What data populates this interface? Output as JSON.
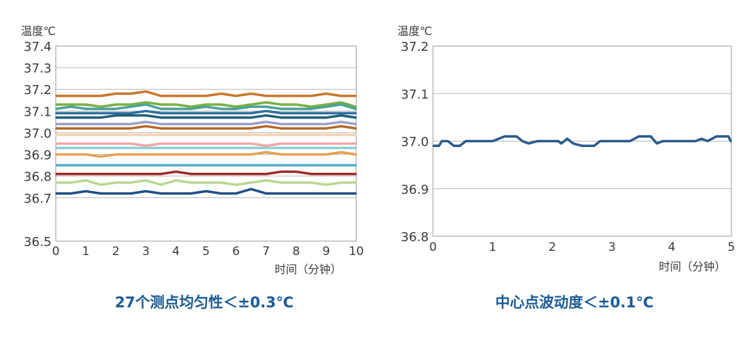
{
  "chart_data": [
    {
      "type": "line",
      "ylabel": "温度℃",
      "xlabel": "时间（分钟）",
      "caption": "27个测点均匀性＜±0.3℃",
      "xlim": [
        0,
        10
      ],
      "ylim": [
        36.5,
        37.4
      ],
      "x_ticks": [
        "0",
        "1",
        "2",
        "3",
        "4",
        "5",
        "6",
        "7",
        "8",
        "9",
        "10"
      ],
      "y_ticks": [
        "37.4",
        "37.3",
        "37.2",
        "37.1",
        "37.0",
        "36.9",
        "36.8",
        "36.7",
        "36.5"
      ],
      "grid": true,
      "series": [
        {
          "color": "#c8782a",
          "values": [
            37.17,
            37.17,
            37.17,
            37.17,
            37.18,
            37.18,
            37.19,
            37.17,
            37.17,
            37.17,
            37.17,
            37.18,
            37.17,
            37.18,
            37.17,
            37.17,
            37.17,
            37.17,
            37.18,
            37.17,
            37.17
          ]
        },
        {
          "color": "#78b043",
          "values": [
            37.13,
            37.13,
            37.13,
            37.12,
            37.13,
            37.13,
            37.14,
            37.13,
            37.13,
            37.12,
            37.13,
            37.13,
            37.12,
            37.13,
            37.14,
            37.13,
            37.13,
            37.12,
            37.13,
            37.14,
            37.12
          ]
        },
        {
          "color": "#4aa39a",
          "values": [
            37.11,
            37.12,
            37.11,
            37.11,
            37.11,
            37.12,
            37.13,
            37.11,
            37.11,
            37.11,
            37.12,
            37.11,
            37.11,
            37.12,
            37.12,
            37.11,
            37.11,
            37.11,
            37.12,
            37.13,
            37.11
          ]
        },
        {
          "color": "#2e6e9e",
          "values": [
            37.09,
            37.09,
            37.09,
            37.09,
            37.09,
            37.09,
            37.1,
            37.09,
            37.09,
            37.09,
            37.09,
            37.09,
            37.09,
            37.09,
            37.1,
            37.09,
            37.09,
            37.09,
            37.09,
            37.09,
            37.09
          ]
        },
        {
          "color": "#1f5f7a",
          "values": [
            37.07,
            37.07,
            37.07,
            37.07,
            37.08,
            37.08,
            37.08,
            37.07,
            37.07,
            37.07,
            37.07,
            37.07,
            37.07,
            37.07,
            37.08,
            37.07,
            37.07,
            37.07,
            37.07,
            37.08,
            37.07
          ]
        },
        {
          "color": "#9aa0c8",
          "values": [
            37.04,
            37.04,
            37.04,
            37.04,
            37.04,
            37.04,
            37.05,
            37.04,
            37.04,
            37.04,
            37.04,
            37.04,
            37.04,
            37.04,
            37.05,
            37.04,
            37.04,
            37.04,
            37.04,
            37.05,
            37.04
          ]
        },
        {
          "color": "#b46a2a",
          "values": [
            37.02,
            37.02,
            37.02,
            37.02,
            37.02,
            37.02,
            37.03,
            37.02,
            37.02,
            37.02,
            37.02,
            37.02,
            37.02,
            37.02,
            37.03,
            37.02,
            37.02,
            37.02,
            37.02,
            37.03,
            37.02
          ]
        },
        {
          "color": "#f4d2b6",
          "values": [
            36.99,
            36.99,
            36.99,
            36.99,
            36.99,
            36.99,
            36.99,
            36.99,
            36.99,
            36.99,
            36.99,
            36.99,
            36.99,
            36.99,
            36.99,
            36.99,
            36.99,
            36.99,
            36.99,
            36.99,
            36.99
          ]
        },
        {
          "color": "#f0a8a8",
          "values": [
            36.95,
            36.95,
            36.95,
            36.95,
            36.95,
            36.95,
            36.94,
            36.95,
            36.95,
            36.95,
            36.95,
            36.95,
            36.95,
            36.95,
            36.94,
            36.95,
            36.95,
            36.95,
            36.95,
            36.95,
            36.95
          ]
        },
        {
          "color": "#8ed0d8",
          "values": [
            36.93,
            36.93,
            36.93,
            36.93,
            36.93,
            36.93,
            36.93,
            36.93,
            36.93,
            36.93,
            36.93,
            36.93,
            36.93,
            36.93,
            36.93,
            36.93,
            36.93,
            36.93,
            36.93,
            36.93,
            36.93
          ]
        },
        {
          "color": "#e8a050",
          "values": [
            36.9,
            36.9,
            36.9,
            36.89,
            36.9,
            36.9,
            36.9,
            36.9,
            36.9,
            36.9,
            36.9,
            36.9,
            36.9,
            36.9,
            36.91,
            36.9,
            36.9,
            36.9,
            36.9,
            36.91,
            36.9
          ]
        },
        {
          "color": "#4ab0c8",
          "values": [
            36.85,
            36.85,
            36.85,
            36.85,
            36.85,
            36.85,
            36.85,
            36.85,
            36.85,
            36.85,
            36.85,
            36.85,
            36.85,
            36.85,
            36.85,
            36.85,
            36.85,
            36.85,
            36.85,
            36.85,
            36.85
          ]
        },
        {
          "color": "#a02a2a",
          "values": [
            36.81,
            36.81,
            36.81,
            36.81,
            36.81,
            36.81,
            36.81,
            36.81,
            36.82,
            36.81,
            36.81,
            36.81,
            36.81,
            36.81,
            36.81,
            36.82,
            36.82,
            36.81,
            36.81,
            36.81,
            36.81
          ]
        },
        {
          "color": "#b8d890",
          "values": [
            36.77,
            36.77,
            36.78,
            36.76,
            36.77,
            36.77,
            36.78,
            36.76,
            36.78,
            36.77,
            36.77,
            36.77,
            36.76,
            36.77,
            36.78,
            36.77,
            36.77,
            36.77,
            36.76,
            36.77,
            36.77
          ]
        },
        {
          "color": "#1f4f8a",
          "values": [
            36.72,
            36.72,
            36.73,
            36.72,
            36.72,
            36.72,
            36.73,
            36.72,
            36.72,
            36.72,
            36.73,
            36.72,
            36.72,
            36.74,
            36.72,
            36.72,
            36.72,
            36.72,
            36.72,
            36.72,
            36.72
          ]
        }
      ]
    },
    {
      "type": "line",
      "ylabel": "温度℃",
      "xlabel": "时间（分钟）",
      "caption": "中心点波动度＜±0.1℃",
      "xlim": [
        0,
        5
      ],
      "ylim": [
        36.8,
        37.2
      ],
      "x_ticks": [
        "0",
        "1",
        "2",
        "3",
        "4",
        "5"
      ],
      "y_ticks": [
        "37.2",
        "37.1",
        "37.0",
        "36.9",
        "36.8"
      ],
      "grid": true,
      "series": [
        {
          "color": "#2b5a8c",
          "x": [
            0,
            0.1,
            0.15,
            0.25,
            0.35,
            0.45,
            0.55,
            1.0,
            1.2,
            1.4,
            1.5,
            1.6,
            1.75,
            2.1,
            2.15,
            2.25,
            2.35,
            2.5,
            2.7,
            2.8,
            3.3,
            3.45,
            3.65,
            3.75,
            3.85,
            4.4,
            4.5,
            4.6,
            4.75,
            4.85,
            4.95,
            5.05
          ],
          "values": [
            36.99,
            36.99,
            37.0,
            37.0,
            36.99,
            36.99,
            37.0,
            37.0,
            37.01,
            37.01,
            37.0,
            36.995,
            37.0,
            37.0,
            36.995,
            37.005,
            36.995,
            36.99,
            36.99,
            37.0,
            37.0,
            37.01,
            37.01,
            36.995,
            37.0,
            37.0,
            37.005,
            37.0,
            37.01,
            37.01,
            37.01,
            37.0
          ]
        }
      ]
    }
  ]
}
